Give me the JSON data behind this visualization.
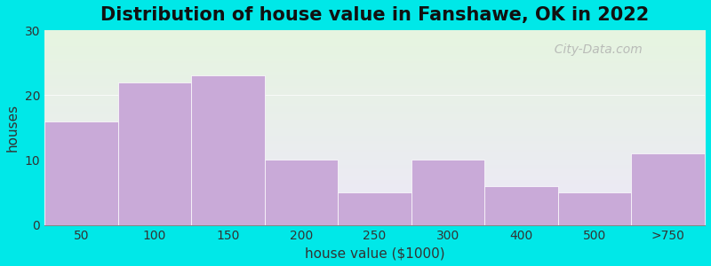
{
  "title": "Distribution of house value in Fanshawe, OK in 2022",
  "xlabel": "house value ($1000)",
  "ylabel": "houses",
  "categories": [
    "50",
    "100",
    "150",
    "200",
    "250",
    "300",
    "400",
    "500",
    ">750"
  ],
  "values": [
    16,
    22,
    23,
    10,
    5,
    10,
    6,
    5,
    11
  ],
  "bar_color": "#c9aad8",
  "bar_edgecolor": "#c9aad8",
  "ylim": [
    0,
    30
  ],
  "yticks": [
    0,
    10,
    20,
    30
  ],
  "bg_outer": "#00e8e8",
  "bg_plot_top": "#e6f5e0",
  "bg_plot_bottom": "#ede8f8",
  "title_fontsize": 15,
  "axis_label_fontsize": 11,
  "tick_fontsize": 10,
  "watermark": "  City-Data.com"
}
